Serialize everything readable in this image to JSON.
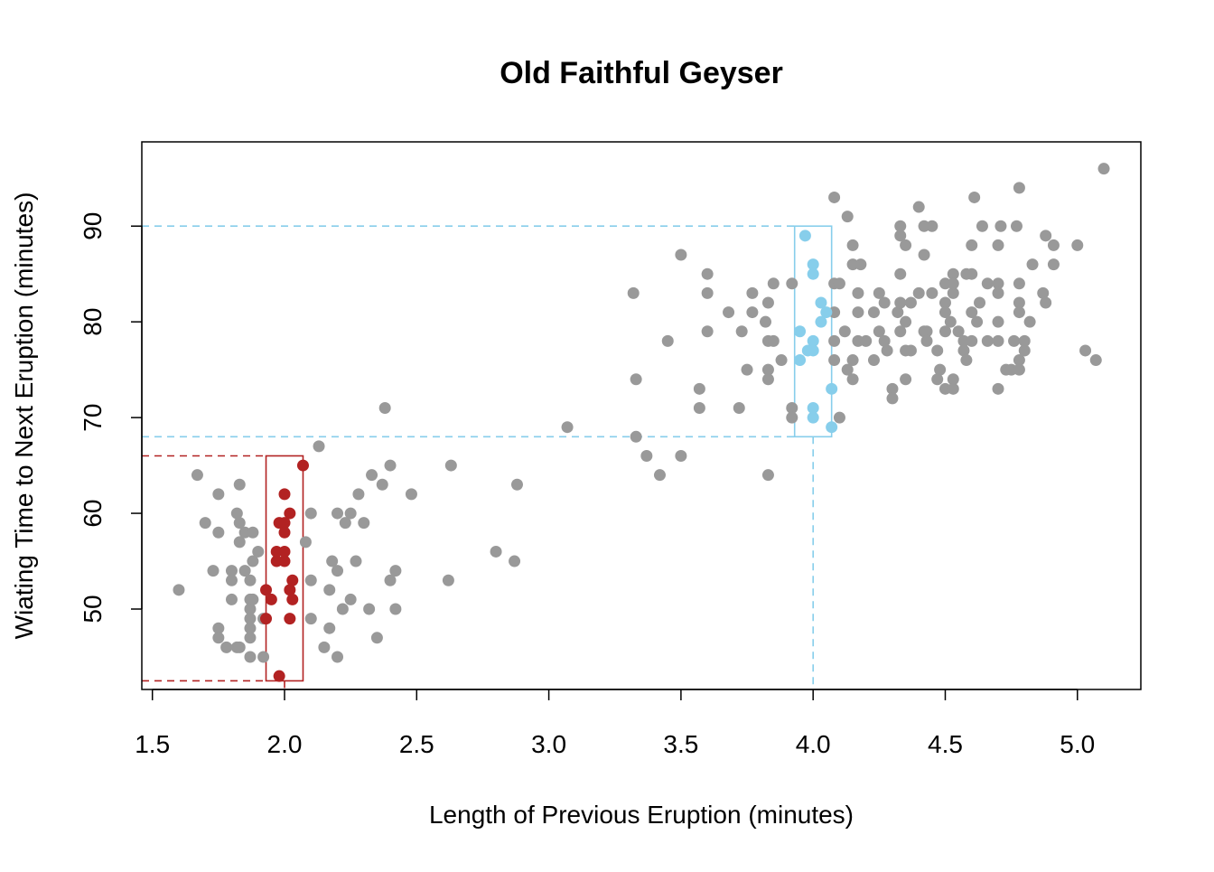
{
  "chart_data": {
    "type": "scatter",
    "title": "Old Faithful Geyser",
    "xlabel": "Length of Previous Eruption (minutes)",
    "ylabel": "Wiating Time to Next Eruption (minutes)",
    "xlim": [
      1.46,
      5.24
    ],
    "ylim": [
      41.6,
      98.8
    ],
    "xticks": [
      "1.5",
      "2.0",
      "2.5",
      "3.0",
      "3.5",
      "4.0",
      "4.5",
      "5.0"
    ],
    "yticks": [
      "50",
      "60",
      "70",
      "80",
      "90"
    ],
    "grid": false,
    "colors": {
      "base": "#999999",
      "red": "#B22222",
      "blue": "#87CEEB"
    },
    "highlights": [
      {
        "color": "red",
        "x_range": [
          1.93,
          2.07
        ],
        "y_range": [
          42.5,
          66
        ],
        "x_center": 2.0
      },
      {
        "color": "blue",
        "x_range": [
          3.93,
          4.07
        ],
        "y_range": [
          68,
          90
        ],
        "x_center": 4.0
      }
    ],
    "series": [
      {
        "color": "base",
        "points": [
          [
            1.6,
            52
          ],
          [
            1.67,
            64
          ],
          [
            1.7,
            59
          ],
          [
            1.73,
            54
          ],
          [
            1.75,
            62
          ],
          [
            1.75,
            58
          ],
          [
            1.75,
            48
          ],
          [
            1.75,
            47
          ],
          [
            1.78,
            46
          ],
          [
            1.8,
            51
          ],
          [
            1.8,
            54
          ],
          [
            1.8,
            53
          ],
          [
            1.82,
            60
          ],
          [
            1.83,
            59
          ],
          [
            1.83,
            57
          ],
          [
            1.83,
            63
          ],
          [
            1.82,
            46
          ],
          [
            1.83,
            46
          ],
          [
            1.85,
            58
          ],
          [
            1.87,
            53
          ],
          [
            1.87,
            51
          ],
          [
            1.87,
            50
          ],
          [
            1.87,
            49
          ],
          [
            1.87,
            48
          ],
          [
            1.87,
            47
          ],
          [
            1.87,
            45
          ],
          [
            1.88,
            58
          ],
          [
            1.88,
            55
          ],
          [
            1.88,
            51
          ],
          [
            1.92,
            45
          ],
          [
            1.92,
            49
          ],
          [
            1.85,
            54
          ],
          [
            1.9,
            56
          ],
          [
            2.1,
            60
          ],
          [
            2.08,
            57
          ],
          [
            2.1,
            53
          ],
          [
            2.1,
            49
          ],
          [
            2.13,
            67
          ],
          [
            2.15,
            46
          ],
          [
            2.17,
            48
          ],
          [
            2.17,
            52
          ],
          [
            2.18,
            55
          ],
          [
            2.2,
            54
          ],
          [
            2.2,
            45
          ],
          [
            2.22,
            50
          ],
          [
            2.2,
            60
          ],
          [
            2.23,
            59
          ],
          [
            2.25,
            60
          ],
          [
            2.25,
            51
          ],
          [
            2.27,
            55
          ],
          [
            2.28,
            62
          ],
          [
            2.3,
            59
          ],
          [
            2.32,
            50
          ],
          [
            2.33,
            64
          ],
          [
            2.35,
            47
          ],
          [
            2.37,
            63
          ],
          [
            2.38,
            71
          ],
          [
            2.4,
            65
          ],
          [
            2.4,
            53
          ],
          [
            2.42,
            54
          ],
          [
            2.42,
            50
          ],
          [
            2.48,
            62
          ],
          [
            2.62,
            53
          ],
          [
            2.63,
            65
          ],
          [
            2.8,
            56
          ],
          [
            2.87,
            55
          ],
          [
            2.88,
            63
          ],
          [
            3.07,
            69
          ],
          [
            3.32,
            83
          ],
          [
            3.33,
            74
          ],
          [
            3.33,
            68
          ],
          [
            3.37,
            66
          ],
          [
            3.42,
            64
          ],
          [
            3.45,
            78
          ],
          [
            3.5,
            87
          ],
          [
            3.5,
            66
          ],
          [
            3.57,
            73
          ],
          [
            3.57,
            71
          ],
          [
            3.6,
            85
          ],
          [
            3.6,
            83
          ],
          [
            3.6,
            79
          ],
          [
            3.68,
            81
          ],
          [
            3.72,
            71
          ],
          [
            3.73,
            79
          ],
          [
            3.75,
            75
          ],
          [
            3.77,
            83
          ],
          [
            3.77,
            81
          ],
          [
            3.82,
            80
          ],
          [
            3.83,
            82
          ],
          [
            3.83,
            75
          ],
          [
            3.83,
            74
          ],
          [
            3.83,
            64
          ],
          [
            3.83,
            78
          ],
          [
            3.85,
            84
          ],
          [
            3.85,
            78
          ],
          [
            3.88,
            76
          ],
          [
            3.92,
            84
          ],
          [
            3.92,
            71
          ],
          [
            3.92,
            70
          ],
          [
            4.08,
            93
          ],
          [
            4.13,
            91
          ],
          [
            4.08,
            84
          ],
          [
            4.1,
            84
          ],
          [
            4.08,
            81
          ],
          [
            4.12,
            79
          ],
          [
            4.08,
            78
          ],
          [
            4.08,
            76
          ],
          [
            4.13,
            75
          ],
          [
            4.15,
            74
          ],
          [
            4.15,
            76
          ],
          [
            4.1,
            70
          ],
          [
            4.15,
            88
          ],
          [
            4.15,
            86
          ],
          [
            4.18,
            86
          ],
          [
            4.17,
            83
          ],
          [
            4.17,
            81
          ],
          [
            4.17,
            78
          ],
          [
            4.2,
            78
          ],
          [
            4.23,
            81
          ],
          [
            4.23,
            76
          ],
          [
            4.25,
            83
          ],
          [
            4.27,
            82
          ],
          [
            4.25,
            79
          ],
          [
            4.27,
            78
          ],
          [
            4.28,
            77
          ],
          [
            4.3,
            73
          ],
          [
            4.3,
            72
          ],
          [
            4.32,
            81
          ],
          [
            4.33,
            82
          ],
          [
            4.33,
            79
          ],
          [
            4.35,
            80
          ],
          [
            4.35,
            77
          ],
          [
            4.35,
            74
          ],
          [
            4.33,
            90
          ],
          [
            4.33,
            89
          ],
          [
            4.35,
            88
          ],
          [
            4.33,
            85
          ],
          [
            4.4,
            92
          ],
          [
            4.42,
            90
          ],
          [
            4.45,
            90
          ],
          [
            4.42,
            87
          ],
          [
            4.37,
            82
          ],
          [
            4.4,
            83
          ],
          [
            4.42,
            79
          ],
          [
            4.43,
            79
          ],
          [
            4.45,
            83
          ],
          [
            4.47,
            77
          ],
          [
            4.37,
            77
          ],
          [
            4.43,
            78
          ],
          [
            4.47,
            74
          ],
          [
            4.48,
            75
          ],
          [
            4.5,
            73
          ],
          [
            4.5,
            84
          ],
          [
            4.5,
            82
          ],
          [
            4.5,
            81
          ],
          [
            4.5,
            79
          ],
          [
            4.52,
            80
          ],
          [
            4.53,
            85
          ],
          [
            4.53,
            83
          ],
          [
            4.53,
            74
          ],
          [
            4.53,
            73
          ],
          [
            4.53,
            84
          ],
          [
            4.55,
            79
          ],
          [
            4.57,
            78
          ],
          [
            4.57,
            77
          ],
          [
            4.58,
            76
          ],
          [
            4.58,
            85
          ],
          [
            4.6,
            88
          ],
          [
            4.6,
            85
          ],
          [
            4.6,
            81
          ],
          [
            4.6,
            78
          ],
          [
            4.61,
            93
          ],
          [
            4.62,
            80
          ],
          [
            4.63,
            82
          ],
          [
            4.64,
            90
          ],
          [
            4.66,
            84
          ],
          [
            4.66,
            78
          ],
          [
            4.7,
            88
          ],
          [
            4.7,
            84
          ],
          [
            4.7,
            83
          ],
          [
            4.7,
            80
          ],
          [
            4.7,
            78
          ],
          [
            4.7,
            73
          ],
          [
            4.71,
            90
          ],
          [
            4.73,
            75
          ],
          [
            4.75,
            75
          ],
          [
            4.76,
            78
          ],
          [
            4.77,
            90
          ],
          [
            4.78,
            94
          ],
          [
            4.78,
            84
          ],
          [
            4.78,
            82
          ],
          [
            4.78,
            81
          ],
          [
            4.78,
            76
          ],
          [
            4.78,
            75
          ],
          [
            4.8,
            77
          ],
          [
            4.8,
            78
          ],
          [
            4.82,
            80
          ],
          [
            4.83,
            86
          ],
          [
            4.87,
            83
          ],
          [
            4.88,
            89
          ],
          [
            4.88,
            82
          ],
          [
            4.91,
            88
          ],
          [
            4.91,
            86
          ],
          [
            5.0,
            88
          ],
          [
            5.03,
            77
          ],
          [
            5.07,
            76
          ],
          [
            5.1,
            96
          ]
        ]
      },
      {
        "color": "red",
        "points": [
          [
            2.0,
            62
          ],
          [
            2.07,
            65
          ],
          [
            2.02,
            60
          ],
          [
            1.98,
            59
          ],
          [
            2.0,
            59
          ],
          [
            2.0,
            58
          ],
          [
            1.97,
            56
          ],
          [
            2.0,
            56
          ],
          [
            1.97,
            55
          ],
          [
            2.0,
            55
          ],
          [
            2.03,
            53
          ],
          [
            2.02,
            52
          ],
          [
            1.93,
            52
          ],
          [
            1.95,
            51
          ],
          [
            2.03,
            51
          ],
          [
            1.93,
            49
          ],
          [
            2.02,
            49
          ],
          [
            1.98,
            43
          ]
        ]
      },
      {
        "color": "blue",
        "points": [
          [
            3.97,
            89
          ],
          [
            4.0,
            86
          ],
          [
            4.0,
            85
          ],
          [
            4.03,
            82
          ],
          [
            4.05,
            81
          ],
          [
            4.03,
            80
          ],
          [
            3.95,
            79
          ],
          [
            4.0,
            78
          ],
          [
            3.98,
            77
          ],
          [
            4.0,
            77
          ],
          [
            3.95,
            76
          ],
          [
            4.07,
            73
          ],
          [
            4.0,
            71
          ],
          [
            4.0,
            70
          ],
          [
            4.07,
            69
          ]
        ]
      }
    ]
  }
}
